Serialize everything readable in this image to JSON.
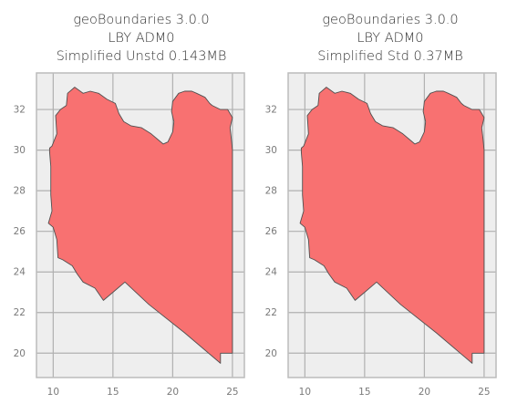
{
  "colors": {
    "plot_background": "#eeeeee",
    "grid": "#b0b0b0",
    "frame": "#bcbcbc",
    "tick_label": "#7a7a7a",
    "title": "#333333",
    "fill": "#f87171",
    "outline": "#505050"
  },
  "chart_data": [
    {
      "type": "map",
      "title_lines": [
        "geoBoundaries 3.0.0",
        "LBY ADM0",
        "Simplified Unstd 0.143MB"
      ],
      "xlabel": "",
      "ylabel": "",
      "xticks": [
        10,
        15,
        20,
        25
      ],
      "yticks": [
        20,
        22,
        24,
        26,
        28,
        30,
        32
      ],
      "xlim": [
        8.6,
        26.0
      ],
      "ylim": [
        18.8,
        33.8
      ],
      "grid": true,
      "region": "LBY ADM0",
      "polygon": [
        [
          9.9,
          30.2
        ],
        [
          10.3,
          30.8
        ],
        [
          10.2,
          31.7
        ],
        [
          10.6,
          32.0
        ],
        [
          11.1,
          32.2
        ],
        [
          11.2,
          32.8
        ],
        [
          11.8,
          33.1
        ],
        [
          12.5,
          32.8
        ],
        [
          13.1,
          32.9
        ],
        [
          13.8,
          32.8
        ],
        [
          14.5,
          32.5
        ],
        [
          15.2,
          32.3
        ],
        [
          15.5,
          31.8
        ],
        [
          15.9,
          31.4
        ],
        [
          16.5,
          31.2
        ],
        [
          17.4,
          31.1
        ],
        [
          18.2,
          30.8
        ],
        [
          18.8,
          30.5
        ],
        [
          19.2,
          30.3
        ],
        [
          19.6,
          30.4
        ],
        [
          20.0,
          30.9
        ],
        [
          20.1,
          31.4
        ],
        [
          19.9,
          31.9
        ],
        [
          20.0,
          32.4
        ],
        [
          20.5,
          32.8
        ],
        [
          21.0,
          32.9
        ],
        [
          21.6,
          32.9
        ],
        [
          22.0,
          32.8
        ],
        [
          22.7,
          32.6
        ],
        [
          23.1,
          32.3
        ],
        [
          23.3,
          32.2
        ],
        [
          24.0,
          32.0
        ],
        [
          24.6,
          32.0
        ],
        [
          25.0,
          31.6
        ],
        [
          24.8,
          31.1
        ],
        [
          24.9,
          30.6
        ],
        [
          25.0,
          30.0
        ],
        [
          25.0,
          29.0
        ],
        [
          25.0,
          28.0
        ],
        [
          25.0,
          27.0
        ],
        [
          25.0,
          26.0
        ],
        [
          25.0,
          25.0
        ],
        [
          25.0,
          24.0
        ],
        [
          25.0,
          23.0
        ],
        [
          25.0,
          22.0
        ],
        [
          25.0,
          21.0
        ],
        [
          25.0,
          20.0
        ],
        [
          24.0,
          20.0
        ],
        [
          24.0,
          19.5
        ],
        [
          21.0,
          21.0
        ],
        [
          18.0,
          22.4
        ],
        [
          16.0,
          23.5
        ],
        [
          15.0,
          23.0
        ],
        [
          14.2,
          22.6
        ],
        [
          13.5,
          23.2
        ],
        [
          12.5,
          23.5
        ],
        [
          12.0,
          23.9
        ],
        [
          11.6,
          24.3
        ],
        [
          10.8,
          24.6
        ],
        [
          10.4,
          24.7
        ],
        [
          10.3,
          25.6
        ],
        [
          10.0,
          26.2
        ],
        [
          9.6,
          26.4
        ],
        [
          9.9,
          27.0
        ],
        [
          9.8,
          27.8
        ],
        [
          9.8,
          28.5
        ],
        [
          9.8,
          29.2
        ],
        [
          9.7,
          29.9
        ],
        [
          9.7,
          30.1
        ]
      ]
    },
    {
      "type": "map",
      "title_lines": [
        "geoBoundaries 3.0.0",
        "LBY ADM0",
        "Simplified Std 0.37MB"
      ],
      "xlabel": "",
      "ylabel": "",
      "xticks": [
        10,
        15,
        20,
        25
      ],
      "yticks": [
        20,
        22,
        24,
        26,
        28,
        30,
        32
      ],
      "xlim": [
        8.6,
        26.0
      ],
      "ylim": [
        18.8,
        33.8
      ],
      "grid": true,
      "region": "LBY ADM0",
      "polygon": [
        [
          9.9,
          30.2
        ],
        [
          10.3,
          30.8
        ],
        [
          10.2,
          31.7
        ],
        [
          10.6,
          32.0
        ],
        [
          11.1,
          32.2
        ],
        [
          11.2,
          32.8
        ],
        [
          11.8,
          33.1
        ],
        [
          12.5,
          32.8
        ],
        [
          13.1,
          32.9
        ],
        [
          13.8,
          32.8
        ],
        [
          14.5,
          32.5
        ],
        [
          15.2,
          32.3
        ],
        [
          15.5,
          31.8
        ],
        [
          15.9,
          31.4
        ],
        [
          16.5,
          31.2
        ],
        [
          17.4,
          31.1
        ],
        [
          18.2,
          30.8
        ],
        [
          18.8,
          30.5
        ],
        [
          19.2,
          30.3
        ],
        [
          19.6,
          30.4
        ],
        [
          20.0,
          30.9
        ],
        [
          20.1,
          31.4
        ],
        [
          19.9,
          31.9
        ],
        [
          20.0,
          32.4
        ],
        [
          20.5,
          32.8
        ],
        [
          21.0,
          32.9
        ],
        [
          21.6,
          32.9
        ],
        [
          22.0,
          32.8
        ],
        [
          22.7,
          32.6
        ],
        [
          23.1,
          32.3
        ],
        [
          23.3,
          32.2
        ],
        [
          24.0,
          32.0
        ],
        [
          24.6,
          32.0
        ],
        [
          25.0,
          31.6
        ],
        [
          24.8,
          31.1
        ],
        [
          24.9,
          30.6
        ],
        [
          25.0,
          30.0
        ],
        [
          25.0,
          29.0
        ],
        [
          25.0,
          28.0
        ],
        [
          25.0,
          27.0
        ],
        [
          25.0,
          26.0
        ],
        [
          25.0,
          25.0
        ],
        [
          25.0,
          24.0
        ],
        [
          25.0,
          23.0
        ],
        [
          25.0,
          22.0
        ],
        [
          25.0,
          21.0
        ],
        [
          25.0,
          20.0
        ],
        [
          24.0,
          20.0
        ],
        [
          24.0,
          19.5
        ],
        [
          21.0,
          21.0
        ],
        [
          18.0,
          22.4
        ],
        [
          16.0,
          23.5
        ],
        [
          15.0,
          23.0
        ],
        [
          14.2,
          22.6
        ],
        [
          13.5,
          23.2
        ],
        [
          12.5,
          23.5
        ],
        [
          12.0,
          23.9
        ],
        [
          11.6,
          24.3
        ],
        [
          10.8,
          24.6
        ],
        [
          10.4,
          24.7
        ],
        [
          10.3,
          25.6
        ],
        [
          10.0,
          26.2
        ],
        [
          9.6,
          26.4
        ],
        [
          9.9,
          27.0
        ],
        [
          9.8,
          27.8
        ],
        [
          9.8,
          28.5
        ],
        [
          9.8,
          29.2
        ],
        [
          9.7,
          29.9
        ],
        [
          9.7,
          30.1
        ]
      ]
    }
  ]
}
